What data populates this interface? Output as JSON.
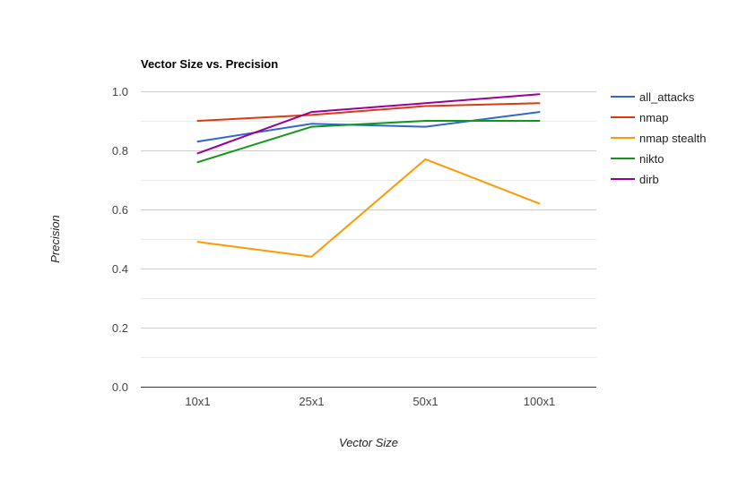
{
  "chart_data": {
    "type": "line",
    "title": "Vector Size vs. Precision",
    "xlabel": "Vector Size",
    "ylabel": "Precision",
    "categories": [
      "10x1",
      "25x1",
      "50x1",
      "100x1"
    ],
    "ylim": [
      0,
      1.0
    ],
    "yticks": [
      "0.0",
      "0.2",
      "0.4",
      "0.6",
      "0.8",
      "1.0"
    ],
    "grid": true,
    "legend_position": "right",
    "series": [
      {
        "name": "all_attacks",
        "color": "#3366cc",
        "values": [
          0.83,
          0.89,
          0.88,
          0.93
        ]
      },
      {
        "name": "nmap",
        "color": "#dc3912",
        "values": [
          0.9,
          0.92,
          0.95,
          0.96
        ]
      },
      {
        "name": "nmap stealth",
        "color": "#ff9900",
        "values": [
          0.49,
          0.44,
          0.77,
          0.62
        ]
      },
      {
        "name": "nikto",
        "color": "#109618",
        "values": [
          0.76,
          0.88,
          0.9,
          0.9
        ]
      },
      {
        "name": "dirb",
        "color": "#990099",
        "values": [
          0.79,
          0.93,
          0.96,
          0.99
        ]
      }
    ]
  }
}
